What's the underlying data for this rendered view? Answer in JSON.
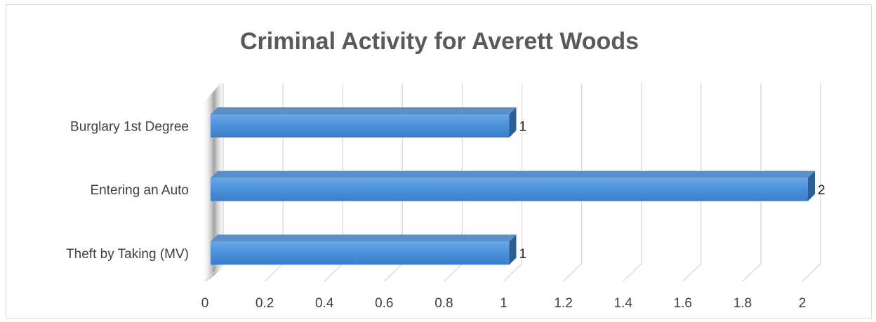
{
  "chart_data": {
    "type": "bar",
    "orientation": "horizontal",
    "style": "3d",
    "title": "Criminal Activity for Averett Woods",
    "xlabel": "",
    "ylabel": "",
    "categories": [
      "Burglary 1st Degree",
      "Entering an Auto",
      "Theft by Taking (MV)"
    ],
    "values": [
      1,
      2,
      1
    ],
    "data_labels": [
      "1",
      "2",
      "1"
    ],
    "ticks": [
      0,
      0.2,
      0.4,
      0.6,
      0.8,
      1,
      1.2,
      1.4,
      1.6,
      1.8,
      2
    ],
    "tick_labels": [
      "0",
      "0.2",
      "0.4",
      "0.6",
      "0.8",
      "1",
      "1.2",
      "1.4",
      "1.6",
      "1.8",
      "2"
    ],
    "xlim": [
      0,
      2
    ],
    "grid": true,
    "legend": "none",
    "bar_color": "#4a90d9",
    "bar_top_color": "#5b8fc7",
    "bar_side_color": "#2e5f93",
    "gridline_color": "#d9d9d9"
  }
}
